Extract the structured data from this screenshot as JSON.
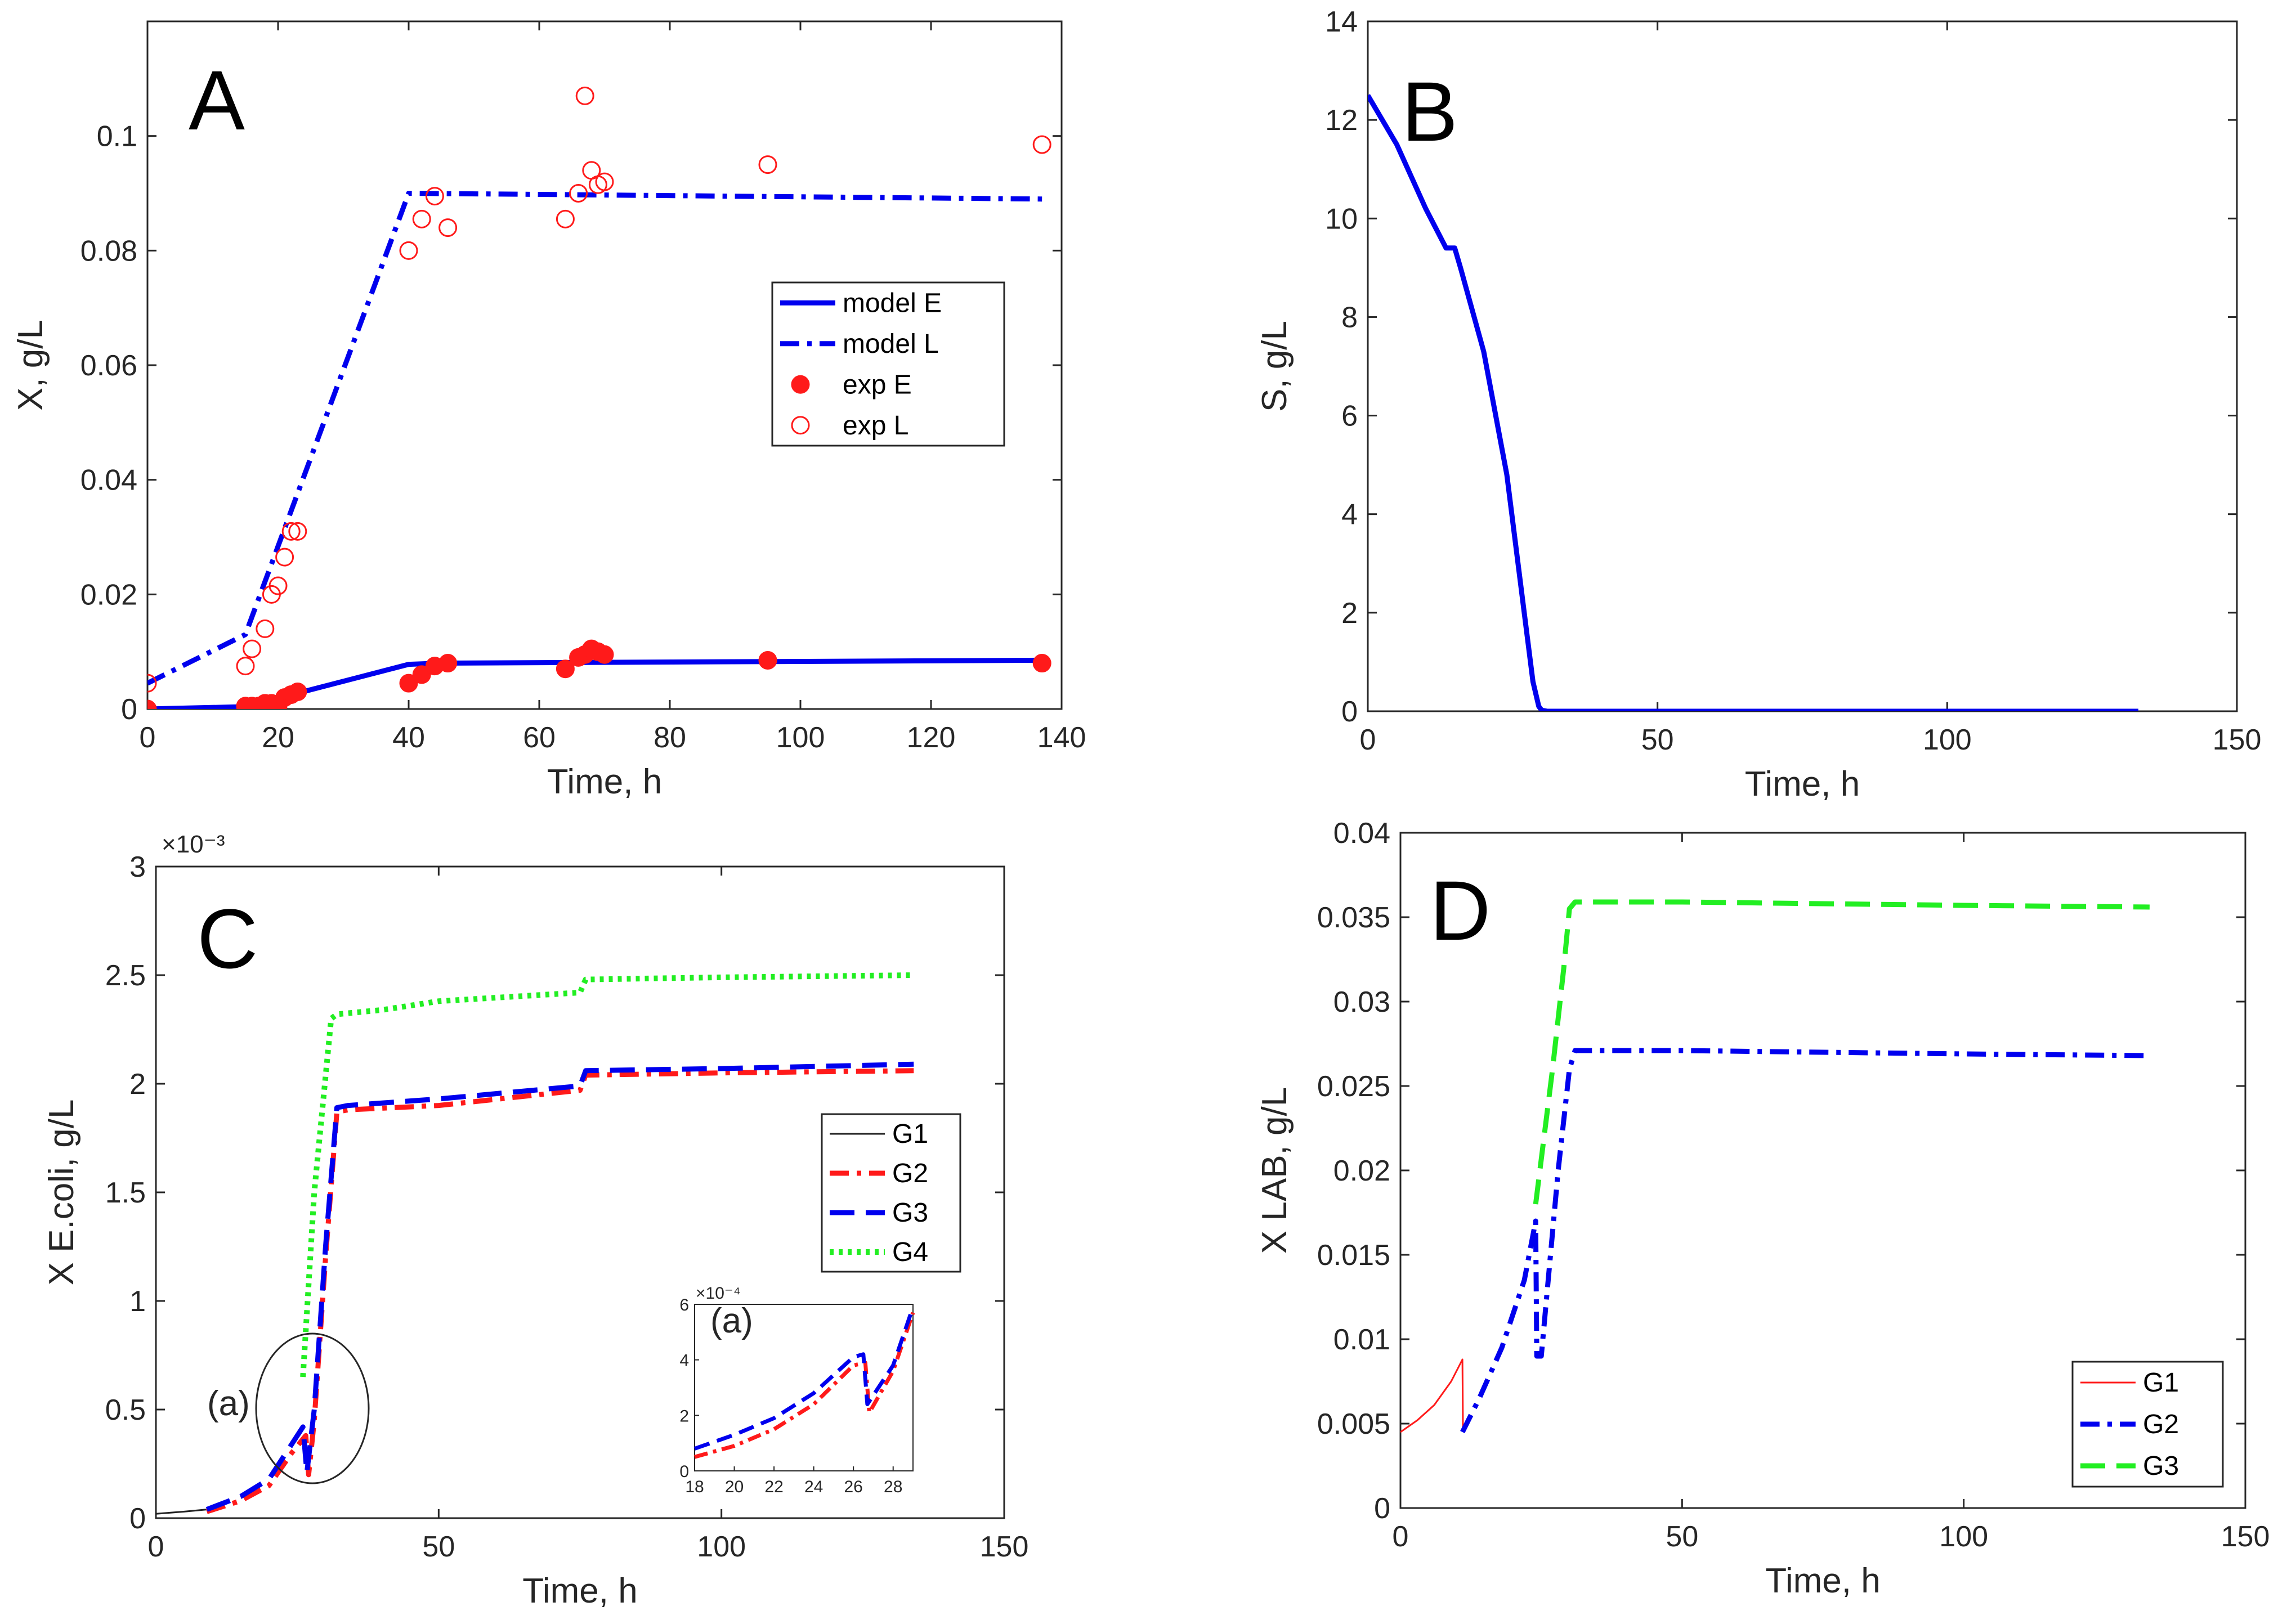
{
  "colors": {
    "blue": "#0000ee",
    "red": "#ff1a1a",
    "green": "#22ee22",
    "black": "#222222"
  },
  "chart_data": [
    {
      "id": "A",
      "type": "line",
      "panel_label": "A",
      "xlabel": "Time, h",
      "ylabel": "X, g/L",
      "xlim": [
        0,
        140
      ],
      "ylim": [
        0,
        0.12
      ],
      "xticks": [
        0,
        20,
        40,
        60,
        80,
        100,
        120,
        140
      ],
      "xtick_labels": [
        "0",
        "20",
        "40",
        "60",
        "80",
        "100",
        "120",
        "140"
      ],
      "yticks": [
        0,
        0.02,
        0.04,
        0.06,
        0.08,
        0.1
      ],
      "ytick_labels": [
        "0",
        "0.02",
        "0.04",
        "0.06",
        "0.08",
        "0.1"
      ],
      "legend_position": "center-right",
      "series": [
        {
          "name": "model E",
          "style": "solid",
          "color": "#0000ee",
          "x": [
            0,
            15,
            40,
            45,
            137
          ],
          "y": [
            0,
            0.0004,
            0.0078,
            0.008,
            0.0085
          ]
        },
        {
          "name": "model L",
          "style": "dashdot",
          "color": "#0000ee",
          "x": [
            0,
            15,
            40,
            60,
            137
          ],
          "y": [
            0.0045,
            0.013,
            0.09,
            0.0898,
            0.089
          ]
        },
        {
          "name": "exp E",
          "style": "marker-filled",
          "color": "#ff1a1a",
          "x": [
            0,
            15,
            16,
            17,
            18,
            19,
            20,
            21,
            22,
            23,
            40,
            42,
            44,
            46,
            64,
            66,
            67,
            68,
            69,
            70,
            95,
            137
          ],
          "y": [
            0,
            0.0005,
            0.0005,
            0.0005,
            0.001,
            0.001,
            0.0005,
            0.002,
            0.0025,
            0.003,
            0.0045,
            0.006,
            0.0075,
            0.008,
            0.007,
            0.009,
            0.0095,
            0.0105,
            0.01,
            0.0095,
            0.0085,
            0.008
          ]
        },
        {
          "name": "exp L",
          "style": "marker-open",
          "color": "#ff1a1a",
          "x": [
            0,
            15,
            16,
            18,
            19,
            20,
            21,
            22,
            23,
            40,
            42,
            44,
            46,
            64,
            66,
            67,
            68,
            69,
            70,
            95,
            137
          ],
          "y": [
            0.0045,
            0.0075,
            0.0105,
            0.014,
            0.02,
            0.0215,
            0.0265,
            0.031,
            0.031,
            0.08,
            0.0855,
            0.0895,
            0.084,
            0.0855,
            0.09,
            0.107,
            0.094,
            0.0915,
            0.092,
            0.095,
            0.0985
          ]
        }
      ]
    },
    {
      "id": "B",
      "type": "line",
      "panel_label": "B",
      "xlabel": "Time, h",
      "ylabel": "S, g/L",
      "xlim": [
        0,
        150
      ],
      "ylim": [
        0,
        14
      ],
      "xticks": [
        0,
        50,
        100,
        150
      ],
      "xtick_labels": [
        "0",
        "50",
        "100",
        "150"
      ],
      "yticks": [
        0,
        2,
        4,
        6,
        8,
        10,
        12,
        14
      ],
      "ytick_labels": [
        "0",
        "2",
        "4",
        "6",
        "8",
        "10",
        "12",
        "14"
      ],
      "series": [
        {
          "name": "S",
          "style": "solid",
          "color": "#0000ee",
          "x": [
            0,
            5,
            10,
            13.5,
            15,
            16,
            20,
            24,
            27,
            28.5,
            29.5,
            30,
            31,
            133
          ],
          "y": [
            12.5,
            11.5,
            10.2,
            9.4,
            9.4,
            9.0,
            7.3,
            4.8,
            2.0,
            0.6,
            0.1,
            0.02,
            0,
            0
          ]
        }
      ]
    },
    {
      "id": "C",
      "type": "line",
      "panel_label": "C",
      "xlabel": "Time, h",
      "ylabel": "X E.coli, g/L",
      "exponent_label": "×10⁻³",
      "xlim": [
        0,
        150
      ],
      "ylim": [
        0,
        3
      ],
      "xticks": [
        0,
        50,
        100,
        150
      ],
      "xtick_labels": [
        "0",
        "50",
        "100",
        "150"
      ],
      "yticks": [
        0,
        0.5,
        1,
        1.5,
        2,
        2.5,
        3
      ],
      "ytick_labels": [
        "0",
        "0.5",
        "1",
        "1.5",
        "2",
        "2.5",
        "3"
      ],
      "annotation": "(a)",
      "legend_position": "center-right",
      "series": [
        {
          "name": "G1",
          "style": "thin",
          "color": "#222222",
          "x": [
            0,
            5,
            9
          ],
          "y": [
            0.02,
            0.03,
            0.04
          ]
        },
        {
          "name": "G2",
          "style": "dashdot",
          "color": "#ff1a1a",
          "x": [
            9,
            15,
            20,
            24,
            26.5,
            27,
            28,
            30,
            32,
            34,
            50,
            75,
            76,
            100,
            134
          ],
          "y": [
            0.03,
            0.08,
            0.15,
            0.3,
            0.38,
            0.2,
            0.45,
            1.2,
            1.87,
            1.88,
            1.9,
            1.97,
            2.04,
            2.05,
            2.06
          ]
        },
        {
          "name": "G3",
          "style": "dashed",
          "color": "#0000ee",
          "x": [
            9,
            15,
            20,
            24,
            26,
            26.7,
            28,
            30,
            32,
            34,
            50,
            75,
            76,
            100,
            134
          ],
          "y": [
            0.04,
            0.1,
            0.18,
            0.34,
            0.42,
            0.21,
            0.5,
            1.25,
            1.89,
            1.9,
            1.93,
            1.99,
            2.06,
            2.07,
            2.09
          ]
        },
        {
          "name": "G4",
          "style": "dotted",
          "color": "#22ee22",
          "x": [
            26,
            28,
            31,
            32,
            40,
            50,
            75,
            76,
            100,
            134
          ],
          "y": [
            0.65,
            1.5,
            2.3,
            2.32,
            2.34,
            2.38,
            2.42,
            2.48,
            2.49,
            2.5
          ]
        }
      ],
      "inset": {
        "annotation": "(a)",
        "exponent_label": "×10⁻⁴",
        "xlim": [
          18,
          29
        ],
        "ylim": [
          0,
          6
        ],
        "xticks": [
          18,
          20,
          22,
          24,
          26,
          28
        ],
        "xtick_labels": [
          "18",
          "20",
          "22",
          "24",
          "26",
          "28"
        ],
        "yticks": [
          0,
          2,
          4,
          6
        ],
        "ytick_labels": [
          "0",
          "2",
          "4",
          "6"
        ],
        "series": [
          {
            "name": "G2",
            "style": "dashdot",
            "color": "#ff1a1a",
            "x": [
              18,
              20,
              22,
              24,
              26,
              26.6,
              26.8,
              28,
              29
            ],
            "y": [
              0.5,
              0.9,
              1.5,
              2.4,
              3.8,
              3.9,
              2.1,
              3.6,
              5.7
            ]
          },
          {
            "name": "G3",
            "style": "dashed",
            "color": "#0000ee",
            "x": [
              18,
              20,
              22,
              24,
              26,
              26.5,
              26.7,
              28,
              29
            ],
            "y": [
              0.8,
              1.3,
              1.9,
              2.8,
              4.1,
              4.2,
              2.4,
              3.8,
              5.9
            ]
          }
        ]
      }
    },
    {
      "id": "D",
      "type": "line",
      "panel_label": "D",
      "xlabel": "Time, h",
      "ylabel": "X LAB, g/L",
      "xlim": [
        0,
        150
      ],
      "ylim": [
        0,
        0.04
      ],
      "xticks": [
        0,
        50,
        100,
        150
      ],
      "xtick_labels": [
        "0",
        "50",
        "100",
        "150"
      ],
      "yticks": [
        0,
        0.005,
        0.01,
        0.015,
        0.02,
        0.025,
        0.03,
        0.035,
        0.04
      ],
      "ytick_labels": [
        "0",
        "0.005",
        "0.01",
        "0.015",
        "0.02",
        "0.025",
        "0.03",
        "0.035",
        "0.04"
      ],
      "legend_position": "bottom-right",
      "series": [
        {
          "name": "G1",
          "style": "thin",
          "color": "#ff1a1a",
          "x": [
            0,
            3,
            6,
            9,
            11,
            11.1
          ],
          "y": [
            0.0045,
            0.0052,
            0.0061,
            0.0075,
            0.0088,
            0.0045
          ]
        },
        {
          "name": "G2",
          "style": "dashdot",
          "color": "#0000ee",
          "x": [
            11,
            14,
            18,
            22,
            24,
            24.2,
            25,
            28,
            30,
            31,
            50,
            100,
            133
          ],
          "y": [
            0.0045,
            0.0065,
            0.0095,
            0.0135,
            0.017,
            0.009,
            0.009,
            0.02,
            0.026,
            0.0271,
            0.0271,
            0.0269,
            0.0268
          ]
        },
        {
          "name": "G3",
          "style": "dashed",
          "color": "#22ee22",
          "x": [
            24,
            27,
            29,
            30,
            31,
            50,
            100,
            133
          ],
          "y": [
            0.018,
            0.026,
            0.032,
            0.0355,
            0.0359,
            0.0359,
            0.0357,
            0.0356
          ]
        }
      ]
    }
  ]
}
